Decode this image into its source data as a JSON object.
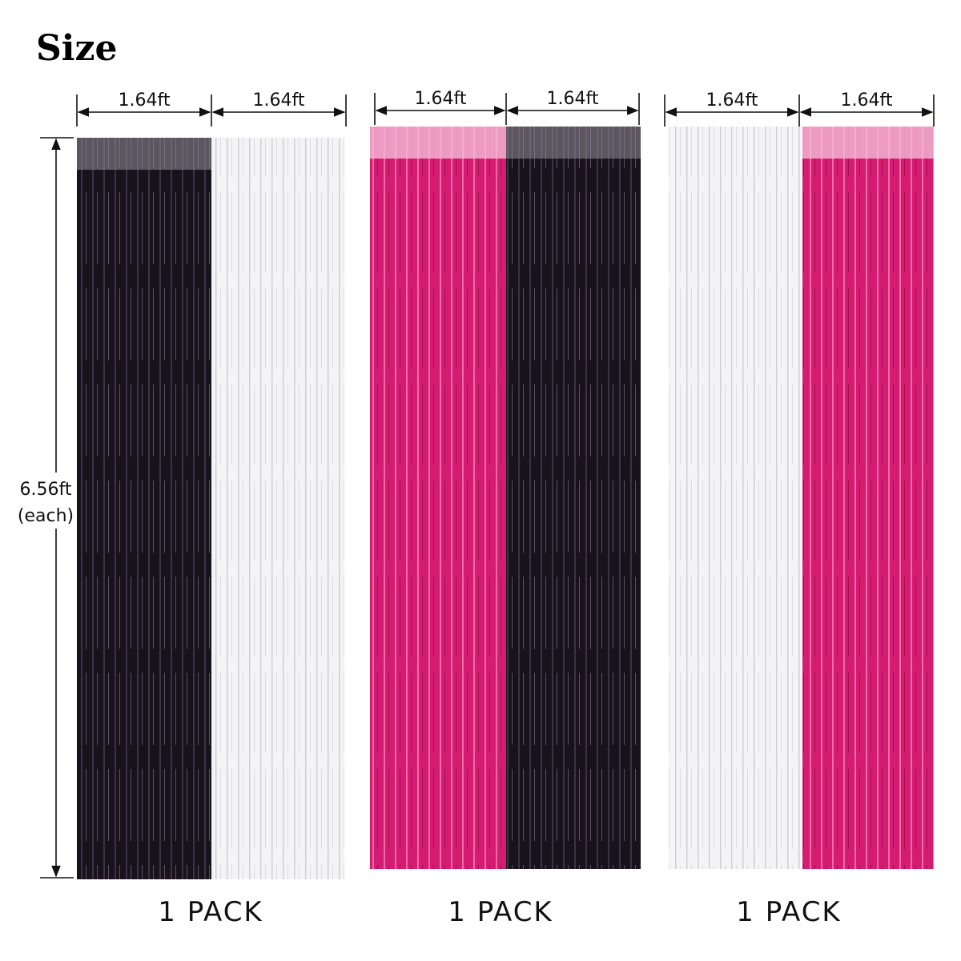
{
  "title": "Size",
  "height": {
    "length": "6.56ft",
    "note": "(each)"
  },
  "packs": [
    {
      "widths": [
        "1.64ft",
        "1.64ft"
      ],
      "label": "1 PACK"
    },
    {
      "widths": [
        "1.64ft",
        "1.64ft"
      ],
      "label": "1 PACK"
    },
    {
      "widths": [
        "1.64ft",
        "1.64ft"
      ],
      "label": "1 PACK"
    }
  ]
}
